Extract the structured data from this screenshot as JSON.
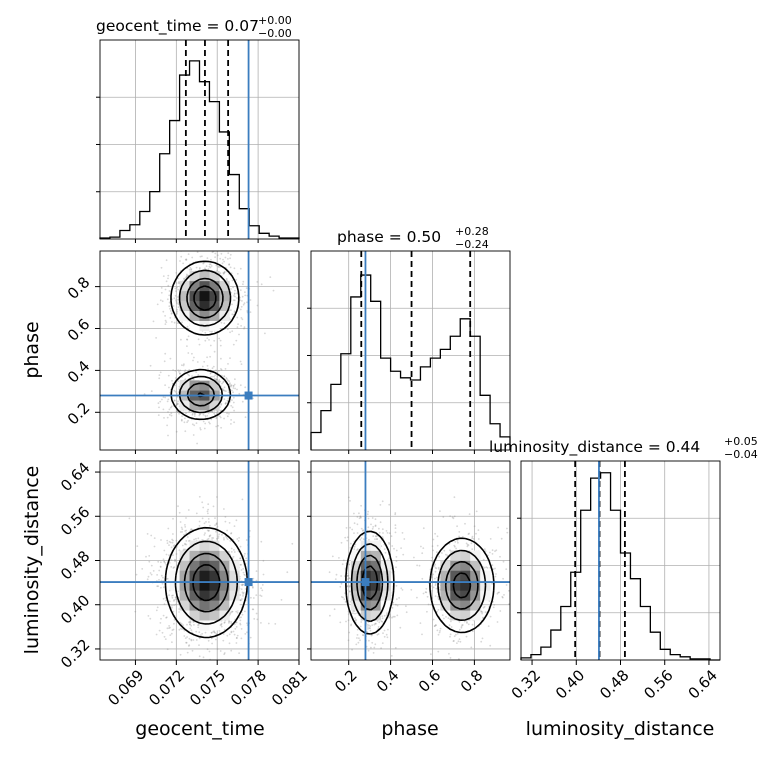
{
  "chart_data": {
    "type": "corner",
    "grid": true,
    "truth_color": "#3b7dbf",
    "contour_color": "#000000",
    "parameters": [
      {
        "name": "geocent_time",
        "xlabel": "geocent_time",
        "title_main": "geocent_time = 0.07",
        "title_plus": "+0.00",
        "title_minus": "−0.00",
        "range": [
          0.0664,
          0.081
        ],
        "ticks": [
          0.069,
          0.072,
          0.075,
          0.078,
          0.081
        ],
        "tick_labels": [
          "0.069",
          "0.072",
          "0.075",
          "0.078",
          "0.081"
        ],
        "truth": 0.0773,
        "quantiles": [
          0.0727,
          0.0741,
          0.0758
        ],
        "histogram": {
          "edges": [
            0.0664,
            0.06713,
            0.06786,
            0.06859,
            0.06932,
            0.07005,
            0.07078,
            0.07151,
            0.07224,
            0.07297,
            0.0737,
            0.07443,
            0.07516,
            0.07589,
            0.07662,
            0.07735,
            0.07808,
            0.07881,
            0.07954,
            0.08027,
            0.081
          ],
          "counts": [
            1,
            2,
            9,
            15,
            29,
            50,
            90,
            125,
            173,
            188,
            166,
            145,
            113,
            68,
            32,
            14,
            6,
            3,
            1,
            1
          ],
          "ymax": 210
        }
      },
      {
        "name": "phase",
        "ylabel": "phase",
        "xlabel": "phase",
        "title_main": "phase = 0.50",
        "title_plus": "+0.28",
        "title_minus": "−0.24",
        "range": [
          0.02,
          0.97
        ],
        "ticks": [
          0.2,
          0.4,
          0.6,
          0.8
        ],
        "tick_labels": [
          "0.2",
          "0.4",
          "0.6",
          "0.8"
        ],
        "truth": 0.28,
        "quantiles": [
          0.26,
          0.5,
          0.78
        ],
        "histogram": {
          "edges": [
            0.02,
            0.0675,
            0.115,
            0.1625,
            0.21,
            0.2575,
            0.305,
            0.3525,
            0.4,
            0.4475,
            0.495,
            0.5425,
            0.59,
            0.6375,
            0.685,
            0.7325,
            0.78,
            0.8275,
            0.875,
            0.9225,
            0.97
          ],
          "counts": [
            8,
            18,
            30,
            44,
            70,
            80,
            68,
            42,
            36,
            33,
            32,
            38,
            42,
            46,
            52,
            60,
            52,
            25,
            12,
            6
          ],
          "ymax": 91
        }
      },
      {
        "name": "luminosity_distance",
        "ylabel": "luminosity_distance",
        "xlabel": "luminosity_distance",
        "title_main": "luminosity_distance = 0.44",
        "title_plus": "+0.05",
        "title_minus": "−0.04",
        "range": [
          0.3,
          0.66
        ],
        "ticks": [
          0.32,
          0.4,
          0.48,
          0.56,
          0.64
        ],
        "tick_labels": [
          "0.32",
          "0.40",
          "0.48",
          "0.56",
          "0.64"
        ],
        "truth": 0.441,
        "quantiles": [
          0.398,
          0.442,
          0.488
        ],
        "histogram": {
          "edges": [
            0.3,
            0.318,
            0.336,
            0.354,
            0.372,
            0.39,
            0.408,
            0.426,
            0.444,
            0.462,
            0.48,
            0.498,
            0.516,
            0.534,
            0.552,
            0.57,
            0.588,
            0.606,
            0.624,
            0.642,
            0.66
          ],
          "counts": [
            2,
            5,
            12,
            28,
            50,
            82,
            140,
            170,
            175,
            140,
            100,
            76,
            50,
            26,
            10,
            5,
            3,
            1,
            1,
            0
          ],
          "ymax": 186
        }
      }
    ]
  }
}
